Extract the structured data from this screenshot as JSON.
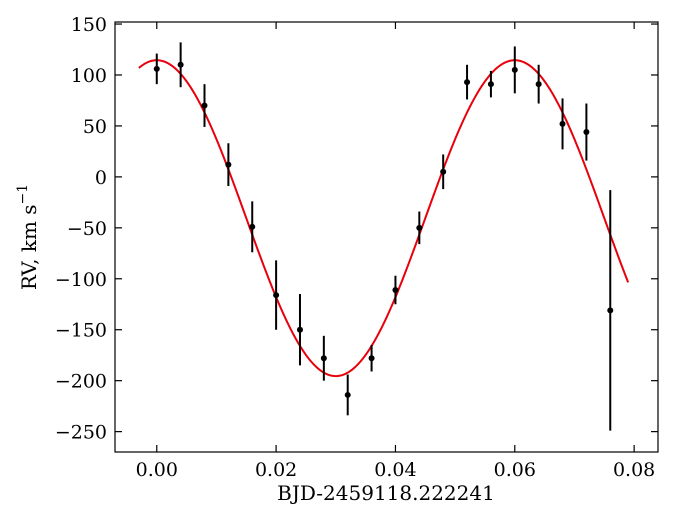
{
  "chart_data": {
    "type": "scatter",
    "title": "",
    "xlabel": "BJD-2459118.222241",
    "ylabel_main": "RV, km s",
    "ylabel_sup": "−1",
    "xlim": [
      -0.007,
      0.084
    ],
    "ylim": [
      -270,
      152
    ],
    "xticks": [
      0.0,
      0.02,
      0.04,
      0.06,
      0.08
    ],
    "xtick_labels": [
      "0.00",
      "0.02",
      "0.04",
      "0.06",
      "0.08"
    ],
    "yticks": [
      150,
      100,
      50,
      0,
      -50,
      -100,
      -150,
      -200,
      -250
    ],
    "ytick_labels": [
      "150",
      "100",
      "50",
      "0",
      "−50",
      "−100",
      "−150",
      "−200",
      "−250"
    ],
    "grid": false,
    "series": [
      {
        "kind": "errorbar",
        "color": "#000000",
        "x": [
          0.0,
          0.004,
          0.008,
          0.012,
          0.016,
          0.02,
          0.024,
          0.028,
          0.032,
          0.036,
          0.04,
          0.044,
          0.048,
          0.052,
          0.056,
          0.06,
          0.064,
          0.068,
          0.072,
          0.076
        ],
        "y": [
          106,
          110,
          70,
          12,
          -49,
          -116,
          -150,
          -178,
          -214,
          -178,
          -111,
          -50,
          5,
          93,
          91,
          105,
          91,
          52,
          44,
          -131
        ],
        "yerr": [
          15,
          22,
          21,
          21,
          25,
          34,
          35,
          22,
          20,
          13,
          14,
          16,
          17,
          17,
          13,
          23,
          19,
          25,
          28,
          118
        ]
      },
      {
        "kind": "model",
        "color": "#e8000b",
        "x_range": [
          -0.003,
          0.079
        ],
        "offset": -40.5,
        "amplitude": 155,
        "period": 0.06,
        "phase_zero": 0.0
      }
    ]
  }
}
